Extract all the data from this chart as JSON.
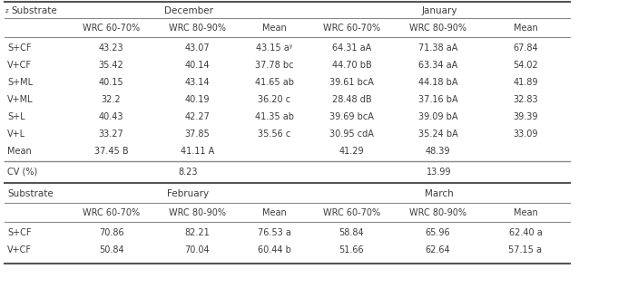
{
  "top_header": [
    "zSubstrate",
    "December",
    "January"
  ],
  "sub_header": [
    "",
    "WRC 60-70%",
    "WRC 80-90%",
    "Mean",
    "WRC 60-70%",
    "WRC 80-90%",
    "Mean"
  ],
  "rows_top": [
    [
      "S+CF",
      "43.23",
      "43.07",
      "43.15 aʸ",
      "64.31 aA",
      "71.38 aA",
      "67.84"
    ],
    [
      "V+CF",
      "35.42",
      "40.14",
      "37.78 bc",
      "44.70 bB",
      "63.34 aA",
      "54.02"
    ],
    [
      "S+ML",
      "40.15",
      "43.14",
      "41.65 ab",
      "39.61 bcA",
      "44.18 bA",
      "41.89"
    ],
    [
      "V+ML",
      "32.2",
      "40.19",
      "36.20 c",
      "28.48 dB",
      "37.16 bA",
      "32.83"
    ],
    [
      "S+L",
      "40.43",
      "42.27",
      "41.35 ab",
      "39.69 bcA",
      "39.09 bA",
      "39.39"
    ],
    [
      "V+L",
      "33.27",
      "37.85",
      "35.56 c",
      "30.95 cdA",
      "35.24 bA",
      "33.09"
    ],
    [
      "Mean",
      "37.45 B",
      "41.11 A",
      "",
      "41.29",
      "48.39",
      ""
    ]
  ],
  "cv_row_label": "CV (%)",
  "cv_dec": "8.23",
  "cv_jan": "13.99",
  "bottom_header": [
    "Substrate",
    "February",
    "March"
  ],
  "sub_header2": [
    "",
    "WRC 60-70%",
    "WRC 80-90%",
    "Mean",
    "WRC 60-70%",
    "WRC 80-90%",
    "Mean"
  ],
  "rows_bottom": [
    [
      "S+CF",
      "70.86",
      "82.21",
      "76.53 a",
      "58.84",
      "65.96",
      "62.40 a"
    ],
    [
      "V+CF",
      "50.84",
      "70.04",
      "60.44 b",
      "51.66",
      "62.64",
      "57.15 a"
    ]
  ],
  "bg_color": "#ffffff",
  "text_color": "#3c3c3c",
  "line_color": "#888888",
  "font_size": 7.0,
  "header_font_size": 7.5
}
